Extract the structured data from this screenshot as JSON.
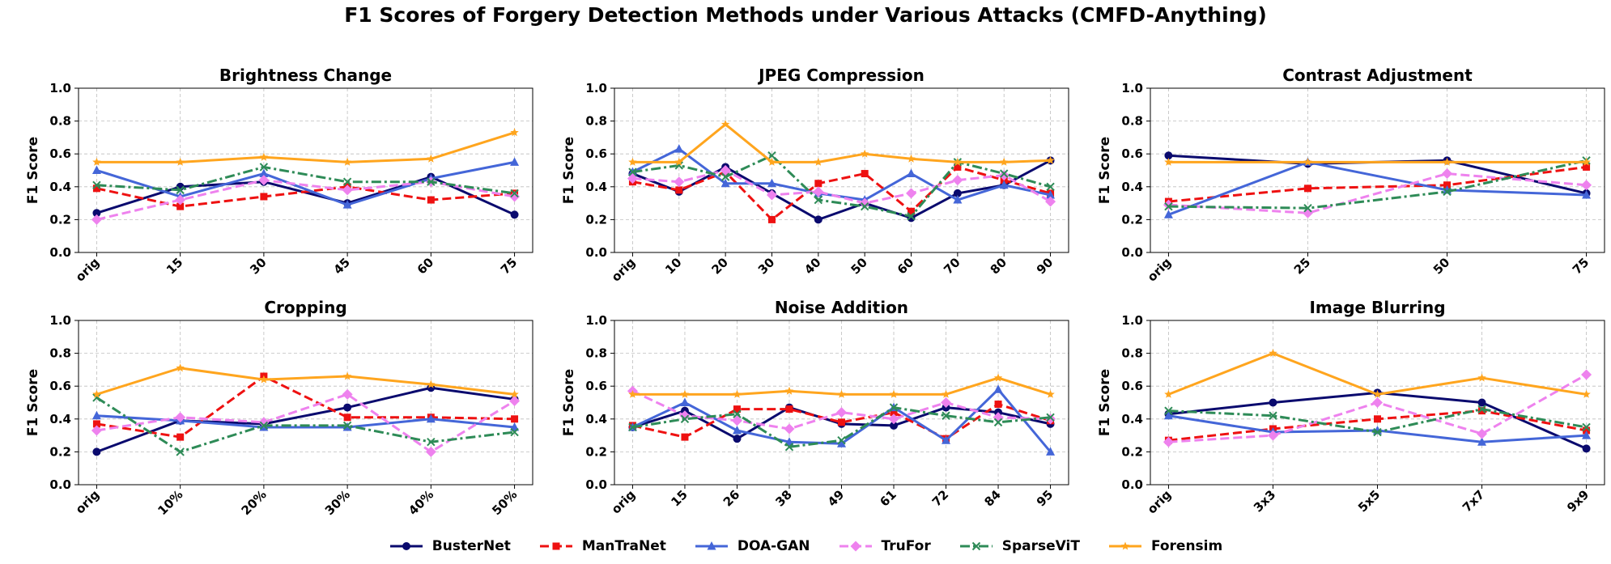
{
  "chart_data": {
    "type": "line",
    "title": "F1 Scores of Forgery Detection Methods under Various Attacks (CMFD-Anything)",
    "legend_position": "bottom-center",
    "methods": [
      {
        "name": "BusterNet",
        "color": "#0a0a6e",
        "marker": "circle",
        "dash": "solid"
      },
      {
        "name": "ManTraNet",
        "color": "#ee1111",
        "marker": "square",
        "dash": "dashed"
      },
      {
        "name": "DOA-GAN",
        "color": "#4466d8",
        "marker": "triangle",
        "dash": "solid"
      },
      {
        "name": "TruFor",
        "color": "#ee82ee",
        "marker": "diamond",
        "dash": "dashed"
      },
      {
        "name": "SparseViT",
        "color": "#2e8b57",
        "marker": "x",
        "dash": "dashdot"
      },
      {
        "name": "Forensim",
        "color": "#ffa51e",
        "marker": "star",
        "dash": "solid"
      }
    ],
    "subplots": [
      {
        "title": "Brightness Change",
        "xlabels": [
          "orig",
          "15",
          "30",
          "45",
          "60",
          "75"
        ],
        "ylabel": "F1 Score",
        "ylim": [
          0.0,
          1.0
        ],
        "yticks": [
          "0.0",
          "0.2",
          "0.4",
          "0.6",
          "0.8",
          "1.0"
        ],
        "grid": true,
        "series": [
          {
            "name": "BusterNet",
            "values": [
              0.24,
              0.4,
              0.43,
              0.3,
              0.46,
              0.23
            ]
          },
          {
            "name": "ManTraNet",
            "values": [
              0.39,
              0.28,
              0.34,
              0.4,
              0.32,
              0.36
            ]
          },
          {
            "name": "DOA-GAN",
            "values": [
              0.5,
              0.34,
              0.48,
              0.29,
              0.45,
              0.55
            ]
          },
          {
            "name": "TruFor",
            "values": [
              0.2,
              0.32,
              0.44,
              0.38,
              0.43,
              0.34
            ]
          },
          {
            "name": "SparseViT",
            "values": [
              0.41,
              0.38,
              0.52,
              0.43,
              0.43,
              0.36
            ]
          },
          {
            "name": "Forensim",
            "values": [
              0.55,
              0.55,
              0.58,
              0.55,
              0.57,
              0.73
            ]
          }
        ]
      },
      {
        "title": "JPEG Compression",
        "xlabels": [
          "orig",
          "10",
          "20",
          "30",
          "40",
          "50",
          "60",
          "70",
          "80",
          "90"
        ],
        "ylabel": "F1 Score",
        "ylim": [
          0.0,
          1.0
        ],
        "yticks": [
          "0.0",
          "0.2",
          "0.4",
          "0.6",
          "0.8",
          "1.0"
        ],
        "grid": true,
        "series": [
          {
            "name": "BusterNet",
            "values": [
              0.48,
              0.37,
              0.52,
              0.36,
              0.2,
              0.3,
              0.21,
              0.36,
              0.41,
              0.56
            ]
          },
          {
            "name": "ManTraNet",
            "values": [
              0.43,
              0.38,
              0.49,
              0.2,
              0.42,
              0.48,
              0.25,
              0.52,
              0.44,
              0.36
            ]
          },
          {
            "name": "DOA-GAN",
            "values": [
              0.49,
              0.63,
              0.42,
              0.42,
              0.36,
              0.32,
              0.48,
              0.32,
              0.41,
              0.35
            ]
          },
          {
            "name": "TruFor",
            "values": [
              0.45,
              0.43,
              0.5,
              0.35,
              0.37,
              0.3,
              0.36,
              0.44,
              0.47,
              0.31
            ]
          },
          {
            "name": "SparseViT",
            "values": [
              0.49,
              0.53,
              0.46,
              0.59,
              0.32,
              0.28,
              0.22,
              0.55,
              0.48,
              0.4
            ]
          },
          {
            "name": "Forensim",
            "values": [
              0.55,
              0.55,
              0.78,
              0.55,
              0.55,
              0.6,
              0.57,
              0.55,
              0.55,
              0.56
            ]
          }
        ]
      },
      {
        "title": "Contrast Adjustment",
        "xlabels": [
          "orig",
          "25",
          "50",
          "75"
        ],
        "ylabel": "F1 Score",
        "ylim": [
          0.0,
          1.0
        ],
        "yticks": [
          "0.0",
          "0.2",
          "0.4",
          "0.6",
          "0.8",
          "1.0"
        ],
        "grid": true,
        "series": [
          {
            "name": "BusterNet",
            "values": [
              0.59,
              0.54,
              0.56,
              0.36
            ]
          },
          {
            "name": "ManTraNet",
            "values": [
              0.31,
              0.39,
              0.41,
              0.52
            ]
          },
          {
            "name": "DOA-GAN",
            "values": [
              0.23,
              0.55,
              0.38,
              0.35
            ]
          },
          {
            "name": "TruFor",
            "values": [
              0.29,
              0.24,
              0.48,
              0.41
            ]
          },
          {
            "name": "SparseViT",
            "values": [
              0.28,
              0.27,
              0.37,
              0.56
            ]
          },
          {
            "name": "Forensim",
            "values": [
              0.55,
              0.55,
              0.55,
              0.55
            ]
          }
        ]
      },
      {
        "title": "Cropping",
        "xlabels": [
          "orig",
          "10%",
          "20%",
          "30%",
          "40%",
          "50%"
        ],
        "ylabel": "F1 Score",
        "ylim": [
          0.0,
          1.0
        ],
        "yticks": [
          "0.0",
          "0.2",
          "0.4",
          "0.6",
          "0.8",
          "1.0"
        ],
        "grid": true,
        "series": [
          {
            "name": "BusterNet",
            "values": [
              0.2,
              0.39,
              0.37,
              0.47,
              0.59,
              0.52
            ]
          },
          {
            "name": "ManTraNet",
            "values": [
              0.37,
              0.29,
              0.66,
              0.41,
              0.41,
              0.4
            ]
          },
          {
            "name": "DOA-GAN",
            "values": [
              0.42,
              0.39,
              0.35,
              0.35,
              0.4,
              0.35
            ]
          },
          {
            "name": "TruFor",
            "values": [
              0.33,
              0.41,
              0.38,
              0.55,
              0.2,
              0.51
            ]
          },
          {
            "name": "SparseViT",
            "values": [
              0.53,
              0.2,
              0.36,
              0.36,
              0.26,
              0.32
            ]
          },
          {
            "name": "Forensim",
            "values": [
              0.55,
              0.71,
              0.64,
              0.66,
              0.61,
              0.55
            ]
          }
        ]
      },
      {
        "title": "Noise Addition",
        "xlabels": [
          "orig",
          "15",
          "26",
          "38",
          "49",
          "61",
          "72",
          "84",
          "95"
        ],
        "ylabel": "F1 Score",
        "ylim": [
          0.0,
          1.0
        ],
        "yticks": [
          "0.0",
          "0.2",
          "0.4",
          "0.6",
          "0.8",
          "1.0"
        ],
        "grid": true,
        "series": [
          {
            "name": "BusterNet",
            "values": [
              0.35,
              0.45,
              0.28,
              0.47,
              0.37,
              0.36,
              0.47,
              0.44,
              0.37
            ]
          },
          {
            "name": "ManTraNet",
            "values": [
              0.36,
              0.29,
              0.46,
              0.46,
              0.38,
              0.44,
              0.28,
              0.49,
              0.39
            ]
          },
          {
            "name": "DOA-GAN",
            "values": [
              0.35,
              0.5,
              0.33,
              0.26,
              0.25,
              0.47,
              0.27,
              0.58,
              0.2
            ]
          },
          {
            "name": "TruFor",
            "values": [
              0.57,
              0.42,
              0.39,
              0.34,
              0.44,
              0.4,
              0.5,
              0.41,
              0.4
            ]
          },
          {
            "name": "SparseViT",
            "values": [
              0.35,
              0.4,
              0.43,
              0.23,
              0.27,
              0.47,
              0.42,
              0.38,
              0.41
            ]
          },
          {
            "name": "Forensim",
            "values": [
              0.55,
              0.55,
              0.55,
              0.57,
              0.55,
              0.55,
              0.55,
              0.65,
              0.55
            ]
          }
        ]
      },
      {
        "title": "Image Blurring",
        "xlabels": [
          "orig",
          "3x3",
          "5x5",
          "7x7",
          "9x9"
        ],
        "ylabel": "F1 Score",
        "ylim": [
          0.0,
          1.0
        ],
        "yticks": [
          "0.0",
          "0.2",
          "0.4",
          "0.6",
          "0.8",
          "1.0"
        ],
        "grid": true,
        "series": [
          {
            "name": "BusterNet",
            "values": [
              0.43,
              0.5,
              0.56,
              0.5,
              0.22
            ]
          },
          {
            "name": "ManTraNet",
            "values": [
              0.27,
              0.34,
              0.4,
              0.45,
              0.33
            ]
          },
          {
            "name": "DOA-GAN",
            "values": [
              0.42,
              0.32,
              0.33,
              0.26,
              0.3
            ]
          },
          {
            "name": "TruFor",
            "values": [
              0.26,
              0.3,
              0.5,
              0.31,
              0.67
            ]
          },
          {
            "name": "SparseViT",
            "values": [
              0.45,
              0.42,
              0.32,
              0.46,
              0.35
            ]
          },
          {
            "name": "Forensim",
            "values": [
              0.55,
              0.8,
              0.55,
              0.65,
              0.55
            ]
          }
        ]
      }
    ]
  }
}
